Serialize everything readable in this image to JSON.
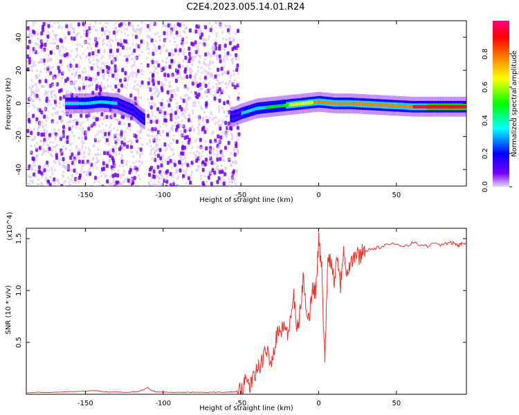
{
  "figure_title": "C2E4.2023.005.14.01.R24",
  "chart_data": [
    {
      "type": "heatmap",
      "xlabel": "Height of straight line (km)",
      "ylabel": "Frequency (Hz)",
      "xlim": [
        -188,
        95
      ],
      "ylim": [
        -50,
        50
      ],
      "xticks": [
        -150,
        -100,
        -50,
        0,
        50
      ],
      "yticks": [
        -40,
        -20,
        0,
        20,
        40
      ],
      "colorbar": {
        "label": "Normalized spectral amplitude",
        "range": [
          0,
          1
        ],
        "ticks": [
          "0.0",
          "0.2",
          "0.4",
          "0.6",
          "0.8"
        ],
        "colors": [
          "#e8d8ff",
          "#6a00ff",
          "#0000ff",
          "#00ffff",
          "#00ff00",
          "#ffff00",
          "#ff8000",
          "#ff0000",
          "#ff0080"
        ]
      },
      "noise_region_km": [
        -188,
        -52
      ],
      "gap_km": [
        -114,
        -111
      ],
      "ridge_center_hz": [
        [
          -160,
          0
        ],
        [
          -150,
          0
        ],
        [
          -140,
          1
        ],
        [
          -130,
          0
        ],
        [
          -125,
          -2
        ],
        [
          -120,
          -4
        ],
        [
          -115,
          -8
        ],
        [
          -112,
          -10
        ],
        [
          -55,
          -8
        ],
        [
          -50,
          -6
        ],
        [
          -40,
          -3
        ],
        [
          -30,
          -2
        ],
        [
          -20,
          -1
        ],
        [
          -10,
          0
        ],
        [
          0,
          1
        ],
        [
          10,
          0
        ],
        [
          20,
          0
        ],
        [
          40,
          -1
        ],
        [
          60,
          -2
        ],
        [
          80,
          -2
        ],
        [
          95,
          -2
        ]
      ],
      "ridge_peak_amplitude": [
        [
          -160,
          0.35
        ],
        [
          -140,
          0.4
        ],
        [
          -120,
          0.3
        ],
        [
          -112,
          0.3
        ],
        [
          -55,
          0.3
        ],
        [
          -40,
          0.45
        ],
        [
          -30,
          0.55
        ],
        [
          -20,
          0.65
        ],
        [
          -10,
          0.75
        ],
        [
          0,
          0.8
        ],
        [
          10,
          0.85
        ],
        [
          20,
          0.85
        ],
        [
          40,
          0.88
        ],
        [
          60,
          0.9
        ],
        [
          80,
          0.92
        ],
        [
          95,
          0.92
        ]
      ]
    },
    {
      "type": "line",
      "xlabel": "Height of straight line (km)",
      "ylabel": "SNR (10 * v/v)",
      "y_multiplier": "(x10^4)",
      "xlim": [
        -188,
        95
      ],
      "ylim": [
        0,
        16000
      ],
      "xticks": [
        -150,
        -100,
        -50,
        0,
        50
      ],
      "yticks": [
        5000,
        10000,
        15000
      ],
      "ytick_labels": [
        "0.5",
        "1.0",
        "1.5"
      ],
      "series_color": "#e8302a",
      "x": [
        -188,
        -180,
        -170,
        -160,
        -150,
        -145,
        -140,
        -135,
        -130,
        -125,
        -120,
        -115,
        -112,
        -110,
        -108,
        -105,
        -100,
        -95,
        -90,
        -85,
        -80,
        -75,
        -70,
        -65,
        -60,
        -55,
        -52,
        -50,
        -48,
        -46,
        -44,
        -42,
        -40,
        -38,
        -36,
        -34,
        -32,
        -30,
        -28,
        -26,
        -24,
        -22,
        -20,
        -18,
        -16,
        -14,
        -12,
        -10,
        -8,
        -6,
        -4,
        -2,
        0,
        2,
        4,
        6,
        8,
        10,
        12,
        14,
        16,
        18,
        20,
        22,
        24,
        26,
        28,
        30,
        35,
        40,
        45,
        50,
        55,
        60,
        65,
        70,
        75,
        80,
        85,
        88,
        90,
        92,
        95
      ],
      "y": [
        150,
        200,
        180,
        250,
        300,
        350,
        280,
        200,
        250,
        180,
        220,
        300,
        500,
        650,
        400,
        250,
        200,
        180,
        200,
        180,
        200,
        170,
        180,
        200,
        180,
        220,
        300,
        500,
        900,
        1300,
        800,
        1500,
        2200,
        2800,
        3000,
        4500,
        3800,
        3200,
        5000,
        6500,
        5800,
        7000,
        5400,
        7600,
        9300,
        6000,
        7800,
        11000,
        8500,
        7200,
        10500,
        9800,
        14800,
        12000,
        3000,
        13500,
        12800,
        11000,
        13600,
        10500,
        14200,
        11800,
        12500,
        13000,
        13600,
        13200,
        13800,
        13900,
        14000,
        14200,
        14400,
        14500,
        14300,
        14600,
        14400,
        14300,
        14500,
        14400,
        14600,
        14500,
        14300,
        14500,
        14600
      ]
    }
  ]
}
